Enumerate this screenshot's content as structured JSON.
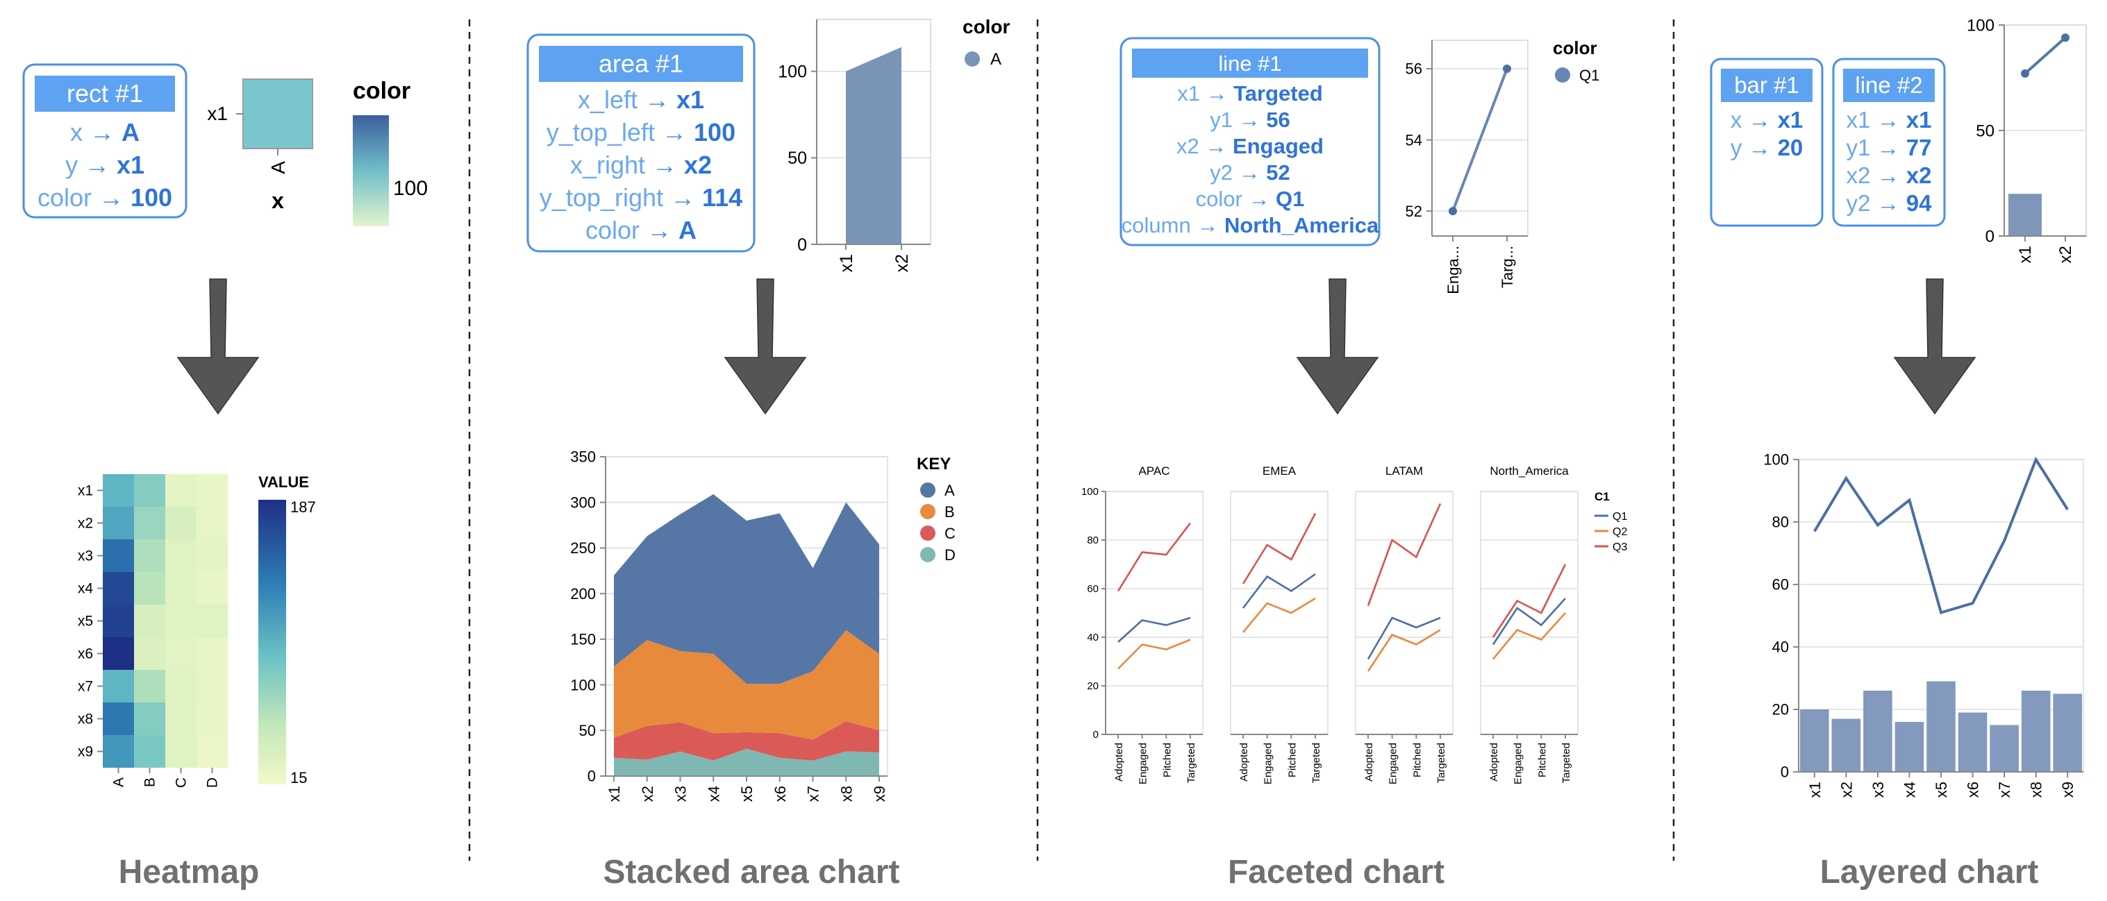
{
  "dividers": 3,
  "arrow": {
    "icon": "down-arrow-icon",
    "color": "#555555"
  },
  "panels": [
    {
      "caption": "Heatmap",
      "spec": {
        "title": "rect #1",
        "rows": [
          {
            "key": "x",
            "value": "A"
          },
          {
            "key": "y",
            "value": "x1"
          },
          {
            "key": "color",
            "value": "100"
          }
        ]
      },
      "mini": {
        "y_tick": "x1",
        "x_tick": "A",
        "x_title": "x",
        "legend_title": "color",
        "legend_value": "100",
        "cell_color": "#7ac6cf"
      },
      "chart_data": {
        "type": "heatmap",
        "x": [
          "A",
          "B",
          "C",
          "D"
        ],
        "y": [
          "x1",
          "x2",
          "x3",
          "x4",
          "x5",
          "x6",
          "x7",
          "x8",
          "x9"
        ],
        "values": [
          [
            100,
            80,
            25,
            22
          ],
          [
            110,
            70,
            35,
            23
          ],
          [
            145,
            60,
            30,
            25
          ],
          [
            170,
            55,
            28,
            22
          ],
          [
            175,
            35,
            28,
            30
          ],
          [
            187,
            33,
            26,
            22
          ],
          [
            100,
            60,
            30,
            23
          ],
          [
            140,
            80,
            30,
            22
          ],
          [
            120,
            85,
            30,
            20
          ]
        ],
        "legend_title": "VALUE",
        "legend_max": "187",
        "legend_min": "15",
        "range": [
          15,
          187
        ]
      }
    },
    {
      "caption": "Stacked area chart",
      "spec": {
        "title": "area #1",
        "rows": [
          {
            "key": "x_left",
            "value": "x1"
          },
          {
            "key": "y_top_left",
            "value": "100"
          },
          {
            "key": "x_right",
            "value": "x2"
          },
          {
            "key": "y_top_right",
            "value": "114"
          },
          {
            "key": "color",
            "value": "A"
          }
        ]
      },
      "mini": {
        "x": [
          "x1",
          "x2"
        ],
        "values": [
          100,
          114
        ],
        "y_ticks": [
          "0",
          "50",
          "100"
        ],
        "ylim": [
          0,
          130
        ],
        "legend_title": "color",
        "legend_item": "A",
        "color": "#7a94b8"
      },
      "chart_data": {
        "type": "area",
        "categories": [
          "x1",
          "x2",
          "x3",
          "x4",
          "x5",
          "x6",
          "x7",
          "x8",
          "x9"
        ],
        "series": [
          {
            "name": "D",
            "values": [
              20,
              18,
              27,
              17,
              30,
              20,
              17,
              27,
              26
            ],
            "color": "#7fb8b2"
          },
          {
            "name": "C",
            "values": [
              22,
              37,
              32,
              30,
              18,
              27,
              23,
              33,
              24
            ],
            "color": "#da5a58"
          },
          {
            "name": "B",
            "values": [
              78,
              94,
              78,
              87,
              53,
              54,
              75,
              100,
              84
            ],
            "color": "#e88a3c"
          },
          {
            "name": "A",
            "values": [
              100,
              114,
              150,
              175,
              179,
              187,
              113,
              140,
              120
            ],
            "color": "#5677a5"
          }
        ],
        "ylim": [
          0,
          350
        ],
        "y_ticks": [
          "0",
          "50",
          "100",
          "150",
          "200",
          "250",
          "300",
          "350"
        ],
        "legend_title": "KEY",
        "legend_order": [
          "A",
          "B",
          "C",
          "D"
        ]
      }
    },
    {
      "caption": "Faceted chart",
      "spec": {
        "title": "line #1",
        "rows": [
          {
            "key": "x1",
            "value": "Targeted"
          },
          {
            "key": "y1",
            "value": "56"
          },
          {
            "key": "x2",
            "value": "Engaged"
          },
          {
            "key": "y2",
            "value": "52"
          },
          {
            "key": "color",
            "value": "Q1"
          },
          {
            "key": "column",
            "value": "North_America"
          }
        ]
      },
      "mini": {
        "x": [
          "Enga...",
          "Targ..."
        ],
        "values": [
          52,
          56
        ],
        "y_ticks": [
          "52",
          "54",
          "56"
        ],
        "ylim": [
          51.3,
          56.8
        ],
        "legend_title": "color",
        "legend_item": "Q1",
        "color": "#6a86b5"
      },
      "chart_data": {
        "type": "line",
        "categories": [
          "Adopted",
          "Engaged",
          "Pitched",
          "Targeted"
        ],
        "ylim": [
          0,
          100
        ],
        "y_ticks": [
          "0",
          "20",
          "40",
          "60",
          "80",
          "100"
        ],
        "legend_title": "C1",
        "legend": [
          {
            "name": "Q1",
            "color": "#4c6fa3"
          },
          {
            "name": "Q2",
            "color": "#e88a3c"
          },
          {
            "name": "Q3",
            "color": "#d9534f"
          }
        ],
        "facets": [
          {
            "name": "APAC",
            "series": [
              {
                "name": "Q1",
                "values": [
                  38,
                  47,
                  45,
                  48
                ]
              },
              {
                "name": "Q2",
                "values": [
                  27,
                  37,
                  35,
                  39
                ]
              },
              {
                "name": "Q3",
                "values": [
                  59,
                  75,
                  74,
                  87
                ]
              }
            ]
          },
          {
            "name": "EMEA",
            "series": [
              {
                "name": "Q1",
                "values": [
                  52,
                  65,
                  59,
                  66
                ]
              },
              {
                "name": "Q2",
                "values": [
                  42,
                  54,
                  50,
                  56
                ]
              },
              {
                "name": "Q3",
                "values": [
                  62,
                  78,
                  72,
                  91
                ]
              }
            ]
          },
          {
            "name": "LATAM",
            "series": [
              {
                "name": "Q1",
                "values": [
                  31,
                  48,
                  44,
                  48
                ]
              },
              {
                "name": "Q2",
                "values": [
                  26,
                  41,
                  37,
                  43
                ]
              },
              {
                "name": "Q3",
                "values": [
                  53,
                  80,
                  73,
                  95
                ]
              }
            ]
          },
          {
            "name": "North_America",
            "series": [
              {
                "name": "Q1",
                "values": [
                  37,
                  52,
                  45,
                  56
                ]
              },
              {
                "name": "Q2",
                "values": [
                  31,
                  43,
                  39,
                  50
                ]
              },
              {
                "name": "Q3",
                "values": [
                  40,
                  55,
                  50,
                  70
                ]
              }
            ]
          }
        ]
      }
    },
    {
      "caption": "Layered chart",
      "spec_bar": {
        "title": "bar #1",
        "rows": [
          {
            "key": "x",
            "value": "x1"
          },
          {
            "key": "y",
            "value": "20"
          }
        ]
      },
      "spec_line": {
        "title": "line #2",
        "rows": [
          {
            "key": "x1",
            "value": "x1"
          },
          {
            "key": "y1",
            "value": "77"
          },
          {
            "key": "x2",
            "value": "x2"
          },
          {
            "key": "y2",
            "value": "94"
          }
        ]
      },
      "mini": {
        "x": [
          "x1",
          "x2"
        ],
        "bar_value": 20,
        "line_values": [
          77,
          94
        ],
        "y_ticks": [
          "0",
          "50",
          "100"
        ],
        "ylim": [
          0,
          100
        ],
        "color": "#5677a5"
      },
      "chart_data": {
        "type": "bar",
        "categories": [
          "x1",
          "x2",
          "x3",
          "x4",
          "x5",
          "x6",
          "x7",
          "x8",
          "x9"
        ],
        "series": [
          {
            "name": "bar",
            "type": "bar",
            "values": [
              20,
              17,
              26,
              16,
              29,
              19,
              15,
              26,
              25
            ],
            "color": "#8399bd"
          },
          {
            "name": "line",
            "type": "line",
            "values": [
              77,
              94,
              79,
              87,
              51,
              54,
              74,
              100,
              84
            ],
            "color": "#4c6fa3"
          }
        ],
        "ylim": [
          0,
          100
        ],
        "y_ticks": [
          "0",
          "20",
          "40",
          "60",
          "80",
          "100"
        ]
      }
    }
  ]
}
